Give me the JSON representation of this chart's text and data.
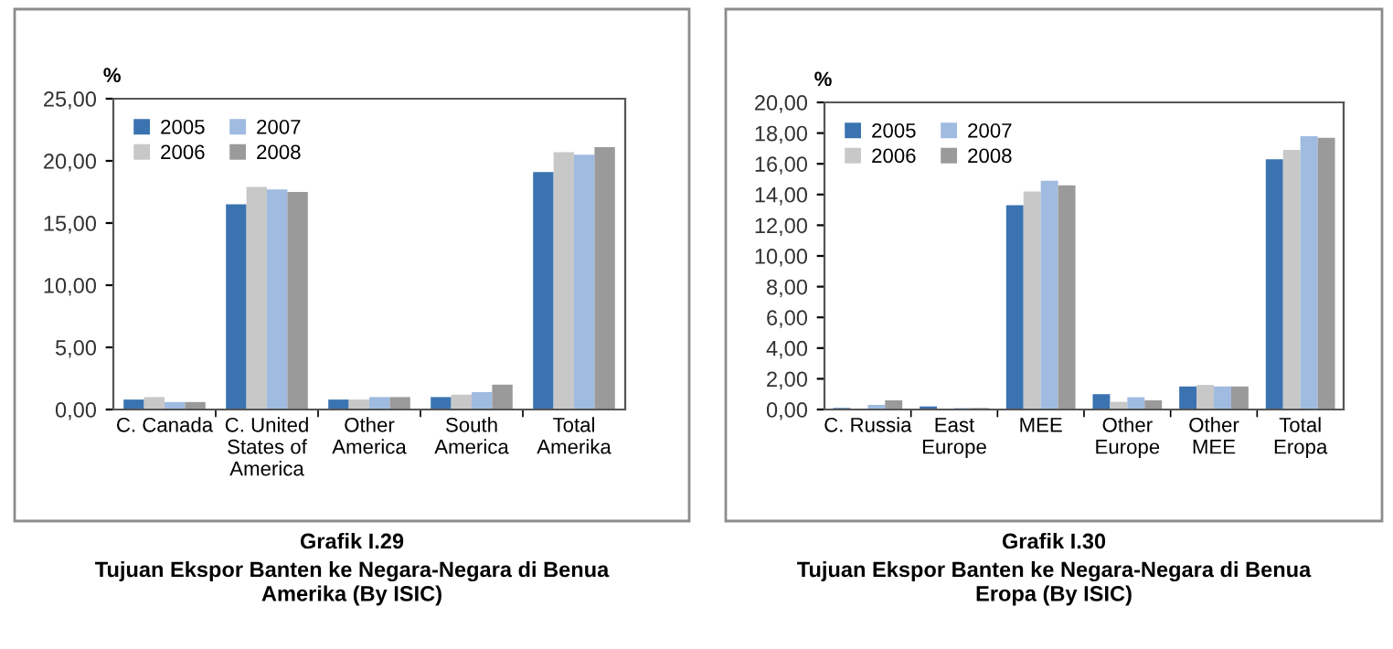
{
  "chart_data": [
    {
      "type": "bar",
      "title": "Grafik I.29",
      "subtitle": "Tujuan Ekspor Banten ke Negara-Negara di Benua\nAmerika (By ISIC)",
      "ylabel": "%",
      "categories": [
        "C. Canada",
        "C. United\nStates of\nAmerica",
        "Other\nAmerica",
        "South\nAmerica",
        "Total\nAmerika"
      ],
      "series": [
        {
          "name": "2005",
          "color": "#3a73b0",
          "values": [
            0.8,
            16.5,
            0.8,
            1.0,
            19.1
          ]
        },
        {
          "name": "2006",
          "color": "#c8c8c8",
          "values": [
            1.0,
            17.9,
            0.8,
            1.2,
            20.7
          ]
        },
        {
          "name": "2007",
          "color": "#9fbbe0",
          "values": [
            0.6,
            17.7,
            1.0,
            1.4,
            20.5
          ]
        },
        {
          "name": "2008",
          "color": "#9a9a9a",
          "values": [
            0.6,
            17.5,
            1.0,
            2.0,
            21.1
          ]
        }
      ],
      "ylim": [
        0,
        25
      ],
      "yticks": [
        {
          "value": 0,
          "label": "0,00"
        },
        {
          "value": 5,
          "label": "5,00"
        },
        {
          "value": 10,
          "label": "10,00"
        },
        {
          "value": 15,
          "label": "15,00"
        },
        {
          "value": 20,
          "label": "20,00"
        },
        {
          "value": 25,
          "label": "25,00"
        }
      ],
      "legend": "top left",
      "grid": false
    },
    {
      "type": "bar",
      "title": "Grafik I.30",
      "subtitle": "Tujuan Ekspor Banten ke Negara-Negara di Benua\nEropa (By ISIC)",
      "ylabel": "%",
      "categories": [
        "C. Russia",
        "East\nEurope",
        "MEE",
        "Other\nEurope",
        "Other\nMEE",
        "Total\nEropa"
      ],
      "series": [
        {
          "name": "2005",
          "color": "#3a73b0",
          "values": [
            0.1,
            0.2,
            13.3,
            1.0,
            1.5,
            16.3
          ]
        },
        {
          "name": "2006",
          "color": "#c8c8c8",
          "values": [
            null,
            null,
            14.2,
            0.5,
            1.6,
            16.9
          ]
        },
        {
          "name": "2007",
          "color": "#9fbbe0",
          "values": [
            0.3,
            0.1,
            14.9,
            0.8,
            1.5,
            17.8
          ]
        },
        {
          "name": "2008",
          "color": "#9a9a9a",
          "values": [
            0.6,
            0.1,
            14.6,
            0.6,
            1.5,
            17.7
          ]
        }
      ],
      "ylim": [
        0,
        20
      ],
      "yticks": [
        {
          "value": 0,
          "label": "0,00"
        },
        {
          "value": 2,
          "label": "2,00"
        },
        {
          "value": 4,
          "label": "4,00"
        },
        {
          "value": 6,
          "label": "6,00"
        },
        {
          "value": 8,
          "label": "8,00"
        },
        {
          "value": 10,
          "label": "10,00"
        },
        {
          "value": 12,
          "label": "12,00"
        },
        {
          "value": 14,
          "label": "14,00"
        },
        {
          "value": 16,
          "label": "16,00"
        },
        {
          "value": 18,
          "label": "18,00"
        },
        {
          "value": 20,
          "label": "20,00"
        }
      ],
      "legend": "top left",
      "grid": false
    }
  ]
}
